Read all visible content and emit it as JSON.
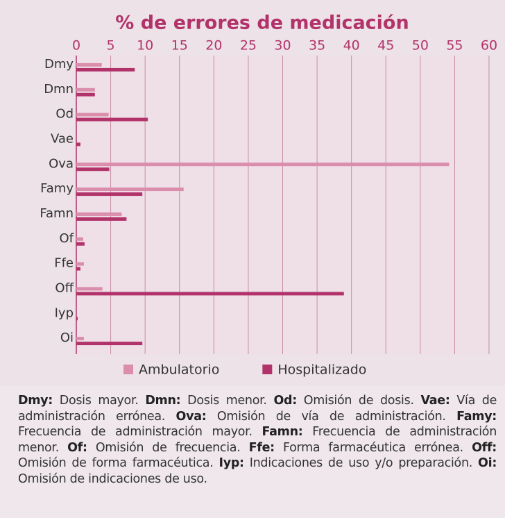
{
  "chart_data": {
    "type": "hbar",
    "title": "% de errores de medicación",
    "categories": [
      "Dmy",
      "Dmn",
      "Od",
      "Vae",
      "Ova",
      "Famy",
      "Famn",
      "Of",
      "Ffe",
      "Off",
      "Iyp",
      "Oi"
    ],
    "series": [
      {
        "name": "Ambulatorio",
        "color": "#da8eab",
        "values": [
          3.7,
          2.7,
          4.7,
          0,
          54.2,
          15.6,
          6.6,
          1.0,
          1.1,
          3.8,
          0,
          1.1
        ]
      },
      {
        "name": "Hospitalizado",
        "color": "#b2336a",
        "values": [
          8.5,
          2.7,
          10.4,
          0.6,
          4.8,
          9.6,
          7.3,
          1.2,
          0.6,
          38.9,
          0.2,
          9.6
        ]
      }
    ],
    "xlim": [
      0,
      60
    ],
    "xticks": [
      0,
      5,
      10,
      15,
      20,
      25,
      30,
      35,
      40,
      45,
      50,
      55,
      60
    ],
    "grid": true,
    "legend": "bottom"
  },
  "notes": [
    {
      "term": "Dmy:",
      "text": "Dosis mayor."
    },
    {
      "term": "Dmn:",
      "text": "Dosis menor."
    },
    {
      "term": "Od:",
      "text": "Omisión de dosis."
    },
    {
      "term": "Vae:",
      "text": "Vía de administración errónea."
    },
    {
      "term": "Ova:",
      "text": "Omisión de vía de administración."
    },
    {
      "term": "Famy:",
      "text": "Frecuencia de administración mayor."
    },
    {
      "term": "Famn:",
      "text": "Frecuencia de administración menor."
    },
    {
      "term": "Of:",
      "text": "Omisión de frecuencia."
    },
    {
      "term": "Ffe:",
      "text": "Forma farmacéutica errónea."
    },
    {
      "term": "Off:",
      "text": "Omisión de forma farmacéutica."
    },
    {
      "term": "Iyp:",
      "text": "Indicaciones de uso y/o preparación."
    },
    {
      "term": "Oi:",
      "text": "Omisión de indicaciones de uso."
    }
  ]
}
